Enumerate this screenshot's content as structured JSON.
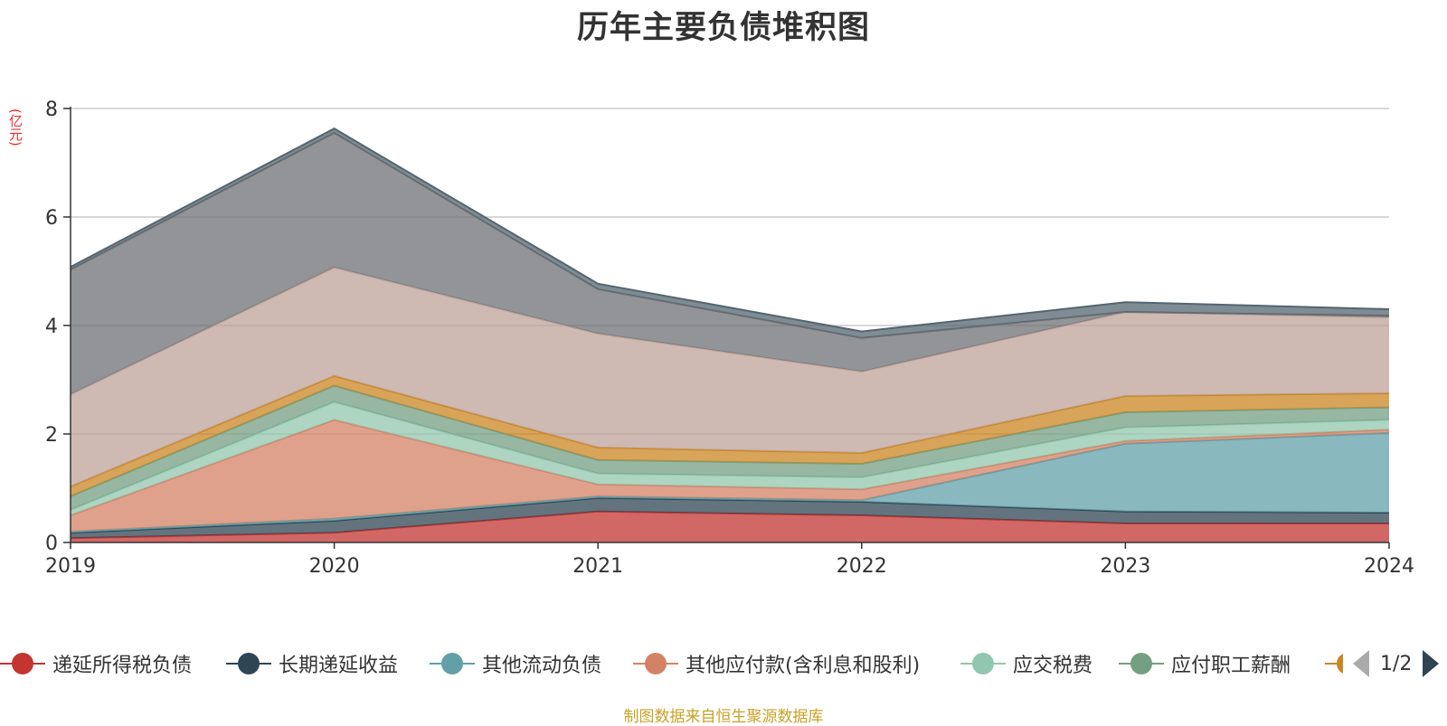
{
  "title": "历年主要负债堆积图",
  "unit_label": "(亿元)",
  "source": "制图数据来自恒生聚源数据库",
  "legend": {
    "items": [
      {
        "label": "递延所得税负债",
        "color": "#c23531"
      },
      {
        "label": "长期递延收益",
        "color": "#2f4554"
      },
      {
        "label": "其他流动负债",
        "color": "#61a0a8"
      },
      {
        "label": "其他应付款(含利息和股利)",
        "color": "#d48265"
      },
      {
        "label": "应交税费",
        "color": "#91c7ae"
      },
      {
        "label": "应付职工薪酬",
        "color": "#749f83"
      },
      {
        "label": "",
        "color": "#ca8622"
      }
    ],
    "page": "1/2"
  },
  "chart_data": {
    "type": "area",
    "stacked": true,
    "title": "历年主要负债堆积图",
    "ylabel": "(亿元)",
    "xlabel": "",
    "x": [
      "2019",
      "2020",
      "2021",
      "2022",
      "2023",
      "2024"
    ],
    "ylim": [
      0,
      8
    ],
    "yticks": [
      0,
      2,
      4,
      6,
      8
    ],
    "grid": true,
    "legend_position": "bottom",
    "series": [
      {
        "name": "递延所得税负债",
        "color": "#c23531",
        "values": [
          0.08,
          0.18,
          0.57,
          0.5,
          0.35,
          0.35
        ]
      },
      {
        "name": "长期递延收益",
        "color": "#2f4554",
        "values": [
          0.1,
          0.22,
          0.25,
          0.25,
          0.22,
          0.2
        ]
      },
      {
        "name": "其他流动负债",
        "color": "#61a0a8",
        "values": [
          0.02,
          0.04,
          0.03,
          0.03,
          1.25,
          1.47
        ]
      },
      {
        "name": "其他应付款(含利息和股利)",
        "color": "#d48265",
        "values": [
          0.3,
          1.82,
          0.22,
          0.2,
          0.05,
          0.06
        ]
      },
      {
        "name": "应交税费",
        "color": "#91c7ae",
        "values": [
          0.1,
          0.33,
          0.2,
          0.22,
          0.25,
          0.18
        ]
      },
      {
        "name": "应付职工薪酬",
        "color": "#749f83",
        "values": [
          0.25,
          0.3,
          0.25,
          0.25,
          0.28,
          0.23
        ]
      },
      {
        "name": "",
        "color": "#ca8622",
        "values": [
          0.18,
          0.18,
          0.23,
          0.2,
          0.3,
          0.26
        ]
      },
      {
        "color": "#bda29a",
        "values": [
          1.7,
          2.0,
          2.1,
          1.5,
          1.55,
          1.4
        ]
      },
      {
        "color": "#6e7074",
        "values": [
          2.3,
          2.48,
          0.82,
          0.62,
          0.0,
          0.03
        ]
      },
      {
        "color": "#546570",
        "values": [
          0.05,
          0.08,
          0.1,
          0.12,
          0.18,
          0.12
        ]
      }
    ]
  }
}
